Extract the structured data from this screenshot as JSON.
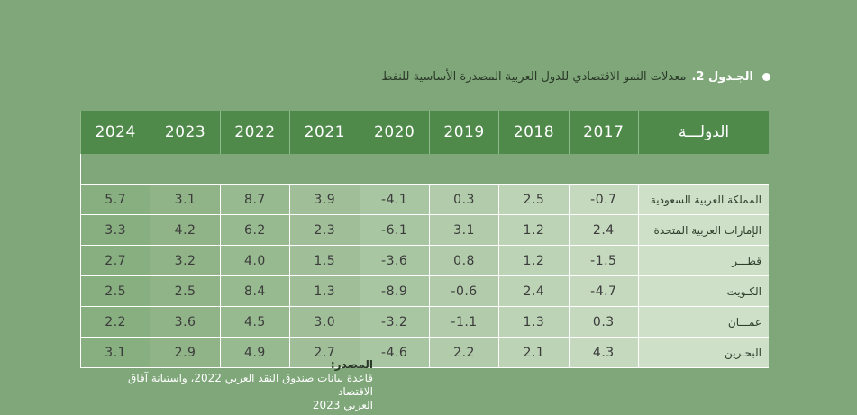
{
  "title": {
    "label": "الجـدول 2.",
    "text": "معدلات النمو الاقتصادي للدول العربية المصدرة الأساسية للنفط"
  },
  "table": {
    "country_header": "الدولـــة",
    "years": [
      "2017",
      "2018",
      "2019",
      "2020",
      "2021",
      "2022",
      "2023",
      "2024"
    ],
    "rows": [
      {
        "country": "المملكة العربية السعودية",
        "values": [
          "0.7-",
          "2.5",
          "0.3",
          "4.1-",
          "3.9",
          "8.7",
          "3.1",
          "5.7"
        ]
      },
      {
        "country": "الإمارات العربية المتحدة",
        "values": [
          "2.4",
          "1.2",
          "3.1",
          "6.1-",
          "2.3",
          "6.2",
          "4.2",
          "3.3"
        ]
      },
      {
        "country": "قطـــر",
        "values": [
          "1.5-",
          "1.2",
          "0.8",
          "3.6-",
          "1.5",
          "4.0",
          "3.2",
          "2.7"
        ]
      },
      {
        "country": "الكـويت",
        "values": [
          "4.7-",
          "2.4",
          "0.6-",
          "8.9-",
          "1.3",
          "8.4",
          "2.5",
          "2.5"
        ]
      },
      {
        "country": "عمـــان",
        "values": [
          "0.3",
          "1.3",
          "1.1-",
          "3.2-",
          "3.0",
          "4.5",
          "3.6",
          "2.2"
        ]
      },
      {
        "country": "البحـرين",
        "values": [
          "4.3",
          "2.1",
          "2.2",
          "4.6-",
          "2.7",
          "4.9",
          "2.9",
          "3.1"
        ]
      }
    ]
  },
  "source": {
    "label": "المصدر:",
    "line1": "قاعدة بيانات صندوق النقد العربي 2022، واستبانة آفاق الاقتصاد",
    "line2": "العربي 2023"
  }
}
